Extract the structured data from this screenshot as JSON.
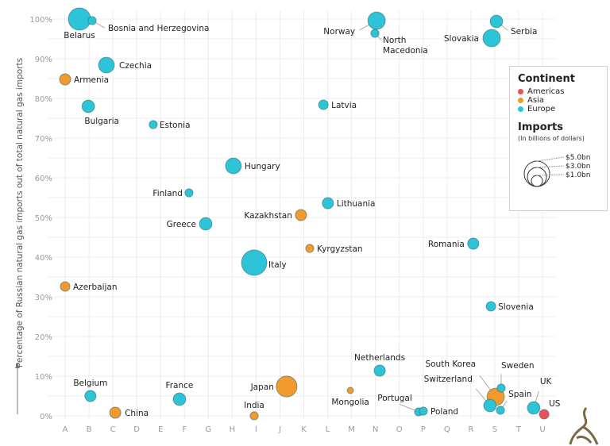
{
  "chart_data": {
    "type": "scatter",
    "subtype": "bubble",
    "ylabel": "Percentage of Russian natural gas imports out of total natural gas imports",
    "xlabel": "",
    "x_ticks": [
      "A",
      "B",
      "C",
      "D",
      "E",
      "F",
      "G",
      "H",
      "I",
      "J",
      "K",
      "L",
      "M",
      "N",
      "O",
      "P",
      "Q",
      "R",
      "S",
      "T",
      "U"
    ],
    "y_ticks": [
      "0%",
      "10%",
      "20%",
      "30%",
      "40%",
      "50%",
      "60%",
      "70%",
      "80%",
      "90%",
      "100%"
    ],
    "ylim": [
      0,
      100
    ],
    "grid": true,
    "colors": {
      "Americas": "#e8505b",
      "Asia": "#f39a2c",
      "Europe": "#2cc4d6"
    },
    "legend": {
      "placement": "right",
      "continent_title": "Continent",
      "continents": [
        "Americas",
        "Asia",
        "Europe"
      ],
      "imports_title": "Imports",
      "imports_subtitle": "(In billions of dollars)",
      "size_labels": [
        "$5.0bn",
        "$3.0bn",
        "$1.0bn"
      ],
      "size_values": [
        5.0,
        3.0,
        1.0
      ]
    },
    "points": [
      {
        "label": "Belarus",
        "continent": "Europe",
        "x": 0.6,
        "y": 100,
        "imports_bn": 3.8
      },
      {
        "label": "Bosnia and Herzegovina",
        "continent": "Europe",
        "x": 1.13,
        "y": 99.6,
        "imports_bn": 0.5
      },
      {
        "label": "Norway",
        "continent": "Europe",
        "x": 13.05,
        "y": 99.6,
        "imports_bn": 2.3
      },
      {
        "label": "North Macedonia",
        "continent": "Europe",
        "x": 12.98,
        "y": 96.4,
        "imports_bn": 0.5
      },
      {
        "label": "Serbia",
        "continent": "Europe",
        "x": 18.07,
        "y": 99.4,
        "imports_bn": 1.2
      },
      {
        "label": "Slovakia",
        "continent": "Europe",
        "x": 17.87,
        "y": 95.2,
        "imports_bn": 2.3
      },
      {
        "label": "Czechia",
        "continent": "Europe",
        "x": 1.73,
        "y": 88.4,
        "imports_bn": 1.9
      },
      {
        "label": "Armenia",
        "continent": "Asia",
        "x": 0,
        "y": 84.8,
        "imports_bn": 0.95
      },
      {
        "label": "Bulgaria",
        "continent": "Europe",
        "x": 0.97,
        "y": 78,
        "imports_bn": 1.2
      },
      {
        "label": "Latvia",
        "continent": "Europe",
        "x": 10.82,
        "y": 78.4,
        "imports_bn": 0.7
      },
      {
        "label": "Estonia",
        "continent": "Europe",
        "x": 3.69,
        "y": 73.4,
        "imports_bn": 0.5
      },
      {
        "label": "Hungary",
        "continent": "Europe",
        "x": 7.05,
        "y": 63,
        "imports_bn": 1.9
      },
      {
        "label": "Finland",
        "continent": "Europe",
        "x": 5.19,
        "y": 56.2,
        "imports_bn": 0.5
      },
      {
        "label": "Lithuania",
        "continent": "Europe",
        "x": 11.01,
        "y": 53.6,
        "imports_bn": 0.95
      },
      {
        "label": "Kazakhstan",
        "continent": "Asia",
        "x": 9.88,
        "y": 50.6,
        "imports_bn": 0.95
      },
      {
        "label": "Greece",
        "continent": "Europe",
        "x": 5.89,
        "y": 48.4,
        "imports_bn": 1.2
      },
      {
        "label": "Kyrgyzstan",
        "continent": "Asia",
        "x": 10.25,
        "y": 42.2,
        "imports_bn": 0.5
      },
      {
        "label": "Romania",
        "continent": "Europe",
        "x": 17.1,
        "y": 43.4,
        "imports_bn": 0.95
      },
      {
        "label": "Italy",
        "continent": "Europe",
        "x": 7.92,
        "y": 38.6,
        "imports_bn": 4.9
      },
      {
        "label": "Azerbaijan",
        "continent": "Asia",
        "x": 0,
        "y": 32.6,
        "imports_bn": 0.7
      },
      {
        "label": "Slovenia",
        "continent": "Europe",
        "x": 17.84,
        "y": 27.6,
        "imports_bn": 0.7
      },
      {
        "label": "Netherlands",
        "continent": "Europe",
        "x": 13.18,
        "y": 11.4,
        "imports_bn": 0.95
      },
      {
        "label": "Belgium",
        "continent": "Europe",
        "x": 1.06,
        "y": 5,
        "imports_bn": 0.95
      },
      {
        "label": "France",
        "continent": "Europe",
        "x": 4.79,
        "y": 4.2,
        "imports_bn": 1.2
      },
      {
        "label": "China",
        "continent": "Asia",
        "x": 2.1,
        "y": 0.8,
        "imports_bn": 0.95
      },
      {
        "label": "Japan",
        "continent": "Asia",
        "x": 9.28,
        "y": 7.4,
        "imports_bn": 3.3
      },
      {
        "label": "India",
        "continent": "Asia",
        "x": 7.92,
        "y": 0,
        "imports_bn": 0.5
      },
      {
        "label": "Mongolia",
        "continent": "Asia",
        "x": 11.95,
        "y": 6.4,
        "imports_bn": 0.3
      },
      {
        "label": "Portugal",
        "continent": "Europe",
        "x": 14.81,
        "y": 1,
        "imports_bn": 0.5
      },
      {
        "label": "Poland",
        "continent": "Europe",
        "x": 15.01,
        "y": 1.2,
        "imports_bn": 0.5
      },
      {
        "label": "South Korea",
        "continent": "Asia",
        "x": 18.04,
        "y": 4.8,
        "imports_bn": 2.3
      },
      {
        "label": "Switzerland",
        "continent": "Europe",
        "x": 17.8,
        "y": 2.6,
        "imports_bn": 1.2
      },
      {
        "label": "Sweden",
        "continent": "Europe",
        "x": 18.27,
        "y": 7,
        "imports_bn": 0.5
      },
      {
        "label": "Spain",
        "continent": "Europe",
        "x": 18.24,
        "y": 1.4,
        "imports_bn": 0.5
      },
      {
        "label": "UK",
        "continent": "Europe",
        "x": 19.63,
        "y": 2,
        "imports_bn": 1.2
      },
      {
        "label": "US",
        "continent": "Americas",
        "x": 20.07,
        "y": 0.4,
        "imports_bn": 0.7
      }
    ]
  }
}
